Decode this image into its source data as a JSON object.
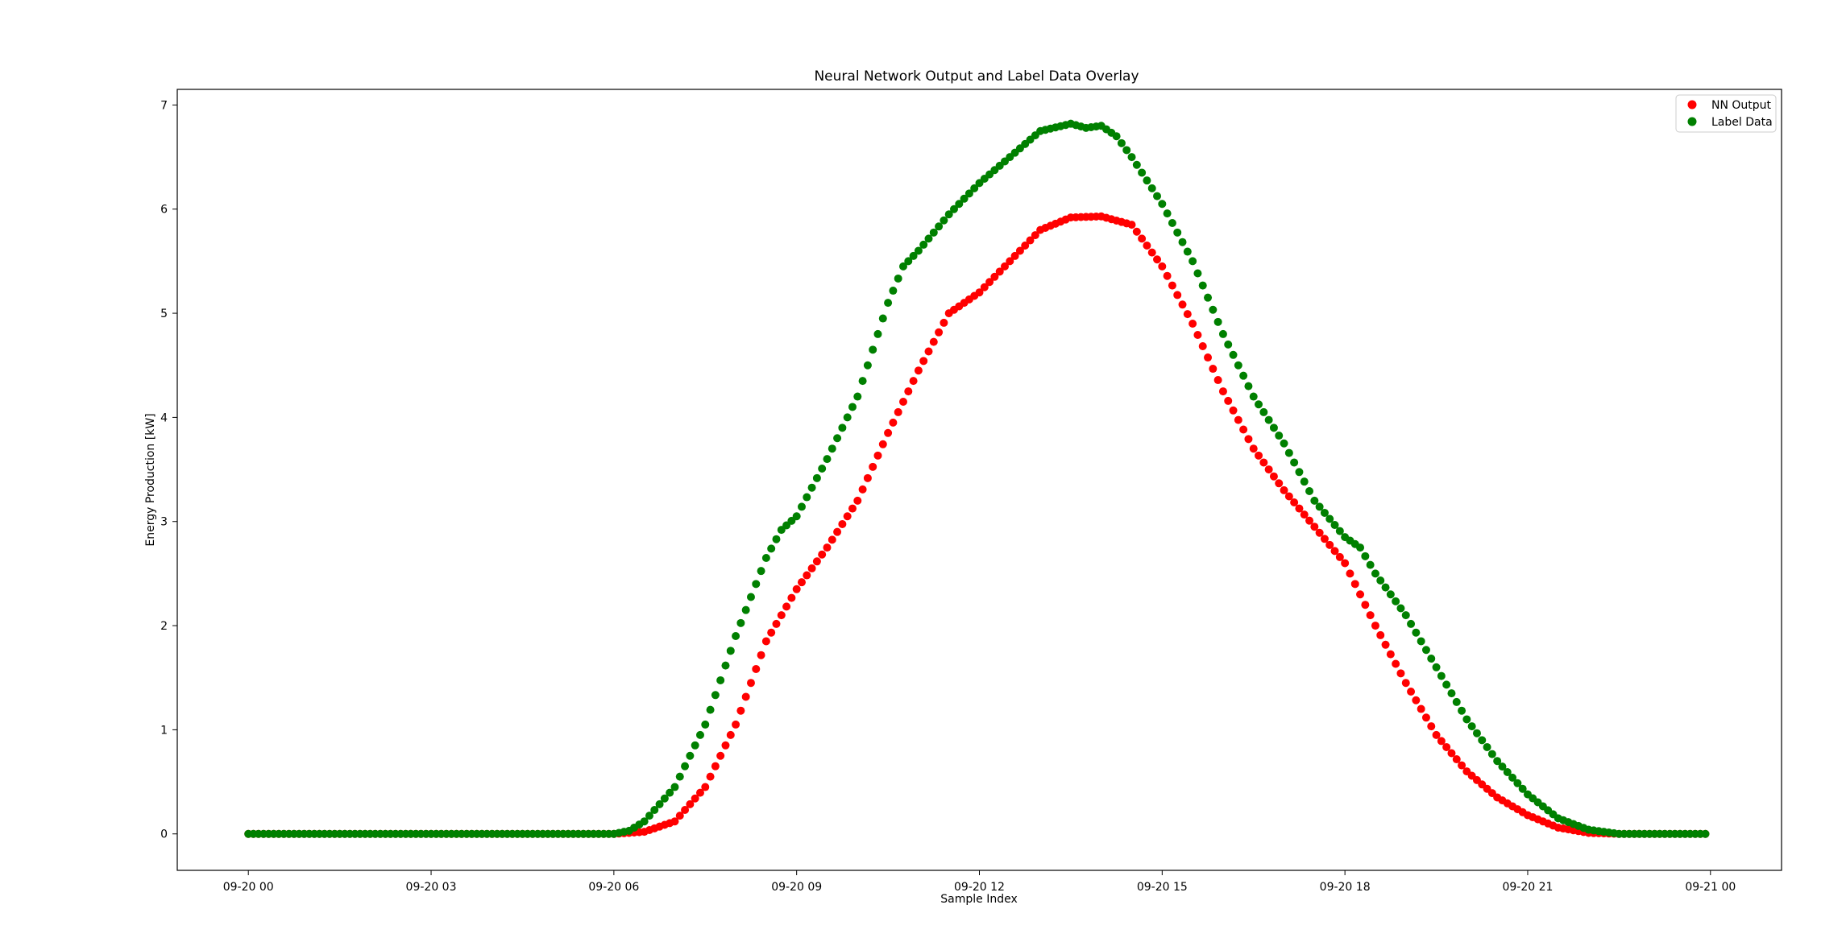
{
  "chart_data": {
    "type": "scatter",
    "title": "Neural Network Output and Label Data Overlay",
    "xlabel": "Sample Index",
    "ylabel": "Energy Production [kW]",
    "xlim": [
      "09-19 22:50",
      "09-21 01:10"
    ],
    "ylim": [
      -0.35,
      7.15
    ],
    "x_tick_labels": [
      "09-20 00",
      "09-20 03",
      "09-20 06",
      "09-20 09",
      "09-20 12",
      "09-20 15",
      "09-20 18",
      "09-20 21",
      "09-21 00"
    ],
    "y_ticks": [
      0,
      1,
      2,
      3,
      4,
      5,
      6,
      7
    ],
    "legend": {
      "placement": "top-right"
    },
    "grid": false,
    "x_start": "09-20 00:00",
    "x_step_minutes": 5,
    "series": [
      {
        "name": "NN Output",
        "color": "#ff0000",
        "keyframes": [
          [
            0,
            0
          ],
          [
            6,
            0
          ],
          [
            6.5,
            0.02
          ],
          [
            7,
            0.12
          ],
          [
            7.5,
            0.45
          ],
          [
            8,
            1.05
          ],
          [
            8.5,
            1.85
          ],
          [
            9,
            2.35
          ],
          [
            9.5,
            2.75
          ],
          [
            10,
            3.2
          ],
          [
            10.5,
            3.85
          ],
          [
            11,
            4.45
          ],
          [
            11.5,
            5.0
          ],
          [
            12,
            5.2
          ],
          [
            12.5,
            5.5
          ],
          [
            13,
            5.8
          ],
          [
            13.5,
            5.92
          ],
          [
            14,
            5.93
          ],
          [
            14.5,
            5.85
          ],
          [
            15,
            5.45
          ],
          [
            15.5,
            4.9
          ],
          [
            16,
            4.25
          ],
          [
            16.5,
            3.7
          ],
          [
            17,
            3.3
          ],
          [
            17.5,
            2.95
          ],
          [
            18,
            2.6
          ],
          [
            18.5,
            2.0
          ],
          [
            19,
            1.45
          ],
          [
            19.5,
            0.95
          ],
          [
            20,
            0.6
          ],
          [
            20.5,
            0.35
          ],
          [
            21,
            0.18
          ],
          [
            21.5,
            0.06
          ],
          [
            22,
            0.01
          ],
          [
            22.5,
            0
          ],
          [
            24,
            0
          ]
        ]
      },
      {
        "name": "Label Data",
        "color": "#008000",
        "keyframes": [
          [
            0,
            0
          ],
          [
            6,
            0
          ],
          [
            6.25,
            0.03
          ],
          [
            6.5,
            0.12
          ],
          [
            7,
            0.45
          ],
          [
            7.5,
            1.05
          ],
          [
            8,
            1.9
          ],
          [
            8.5,
            2.65
          ],
          [
            8.75,
            2.92
          ],
          [
            9,
            3.05
          ],
          [
            9.5,
            3.6
          ],
          [
            10,
            4.2
          ],
          [
            10.5,
            5.1
          ],
          [
            10.75,
            5.45
          ],
          [
            11,
            5.6
          ],
          [
            11.5,
            5.95
          ],
          [
            12,
            6.25
          ],
          [
            12.5,
            6.5
          ],
          [
            13,
            6.75
          ],
          [
            13.5,
            6.82
          ],
          [
            13.75,
            6.78
          ],
          [
            14,
            6.8
          ],
          [
            14.25,
            6.7
          ],
          [
            14.5,
            6.5
          ],
          [
            15,
            6.05
          ],
          [
            15.5,
            5.5
          ],
          [
            16,
            4.8
          ],
          [
            16.5,
            4.2
          ],
          [
            17,
            3.75
          ],
          [
            17.5,
            3.2
          ],
          [
            18,
            2.85
          ],
          [
            18.25,
            2.75
          ],
          [
            18.5,
            2.5
          ],
          [
            19,
            2.1
          ],
          [
            19.5,
            1.6
          ],
          [
            20,
            1.1
          ],
          [
            20.5,
            0.7
          ],
          [
            21,
            0.38
          ],
          [
            21.5,
            0.15
          ],
          [
            22,
            0.04
          ],
          [
            22.5,
            0
          ],
          [
            24,
            0
          ]
        ]
      }
    ]
  }
}
